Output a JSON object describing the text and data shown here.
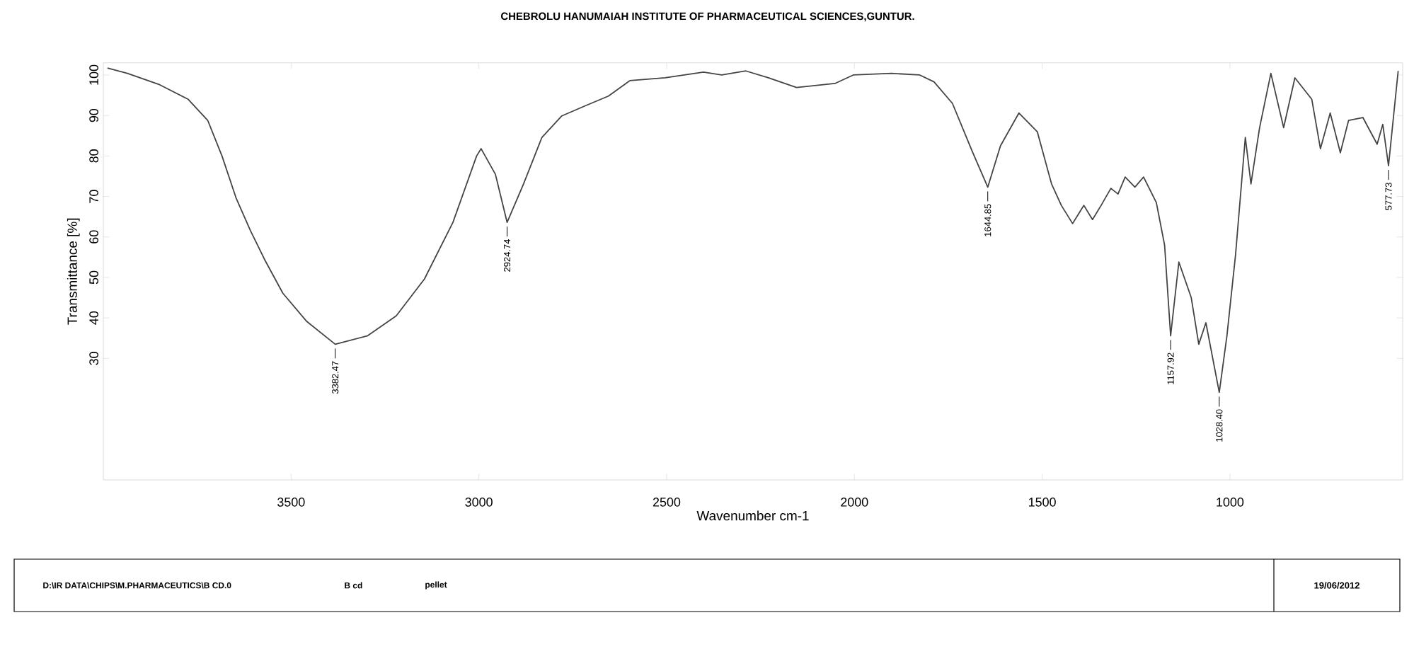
{
  "chart_data": {
    "type": "line",
    "title": "CHEBROLU HANUMAIAH INSTITUTE OF PHARMACEUTICAL SCIENCES,GUNTUR.",
    "xlabel": "Wavenumber cm-1",
    "ylabel": "Transmittance [%]",
    "x": [
      3989,
      3936,
      3850,
      3774,
      3722,
      3684,
      3646,
      3608,
      3571,
      3522,
      3458,
      3382.47,
      3296,
      3220,
      3145,
      3069,
      3006,
      2994,
      2956,
      2924.74,
      2881,
      2832,
      2779,
      2719,
      2655,
      2598,
      2504,
      2402,
      2353,
      2289,
      2229,
      2154,
      2052,
      2003,
      1901,
      1826,
      1788,
      1739,
      1686,
      1644.85,
      1611,
      1562,
      1513,
      1475,
      1449,
      1419,
      1389,
      1366,
      1343,
      1317,
      1298,
      1279,
      1253,
      1230,
      1196,
      1174,
      1157.92,
      1136,
      1103,
      1083,
      1064,
      1028.4,
      1008,
      985,
      959,
      944,
      921,
      891,
      857,
      827,
      782,
      759,
      733,
      706,
      684,
      646,
      608,
      593,
      577.73,
      552
    ],
    "series": [
      {
        "color": "#444444",
        "line_style": "solid",
        "values": [
          101.7,
          100.4,
          97.6,
          94.0,
          88.8,
          80.0,
          69.5,
          61.5,
          54.5,
          46.1,
          39.1,
          33.5,
          35.6,
          40.5,
          49.6,
          63.6,
          80.0,
          81.8,
          75.5,
          63.6,
          73.1,
          84.6,
          89.9,
          92.3,
          94.8,
          98.6,
          99.3,
          100.7,
          100,
          101,
          99.3,
          96.9,
          97.9,
          100,
          100.4,
          100,
          98.3,
          93,
          81.1,
          72.3,
          82.5,
          90.6,
          86,
          73.1,
          67.8,
          63.3,
          67.8,
          64.3,
          67.8,
          72,
          70.6,
          74.8,
          72.3,
          74.8,
          68.5,
          58,
          35.6,
          53.8,
          45,
          33.5,
          38.8,
          21.6,
          35.6,
          55.6,
          84.6,
          73.1,
          87,
          100.4,
          87,
          99.3,
          94,
          81.8,
          90.6,
          80.8,
          88.8,
          89.5,
          82.9,
          87.8,
          77.6,
          101
        ]
      }
    ],
    "xlim": [
      4000,
      540
    ],
    "ylim": [
      0,
      103
    ],
    "xticks": [
      3500,
      3000,
      2500,
      2000,
      1500,
      1000
    ],
    "yticks": [
      30,
      40,
      50,
      60,
      70,
      80,
      90,
      100
    ],
    "grid": false,
    "annotations": [
      {
        "text": "3382.47",
        "x": 3382.47,
        "y": 33.5
      },
      {
        "text": "2924.74",
        "x": 2924.74,
        "y": 63.6
      },
      {
        "text": "1644.85",
        "x": 1644.85,
        "y": 72.3
      },
      {
        "text": "1157.92",
        "x": 1157.92,
        "y": 35.6
      },
      {
        "text": "1028.40",
        "x": 1028.4,
        "y": 21.6
      },
      {
        "text": "577.73",
        "x": 577.73,
        "y": 77.6
      },
      "D:\\IR DATA\\CHIPS\\M.PHARMACEUTICS\\B CD.0",
      "B cd",
      "pellet",
      "19/06/2012"
    ]
  }
}
